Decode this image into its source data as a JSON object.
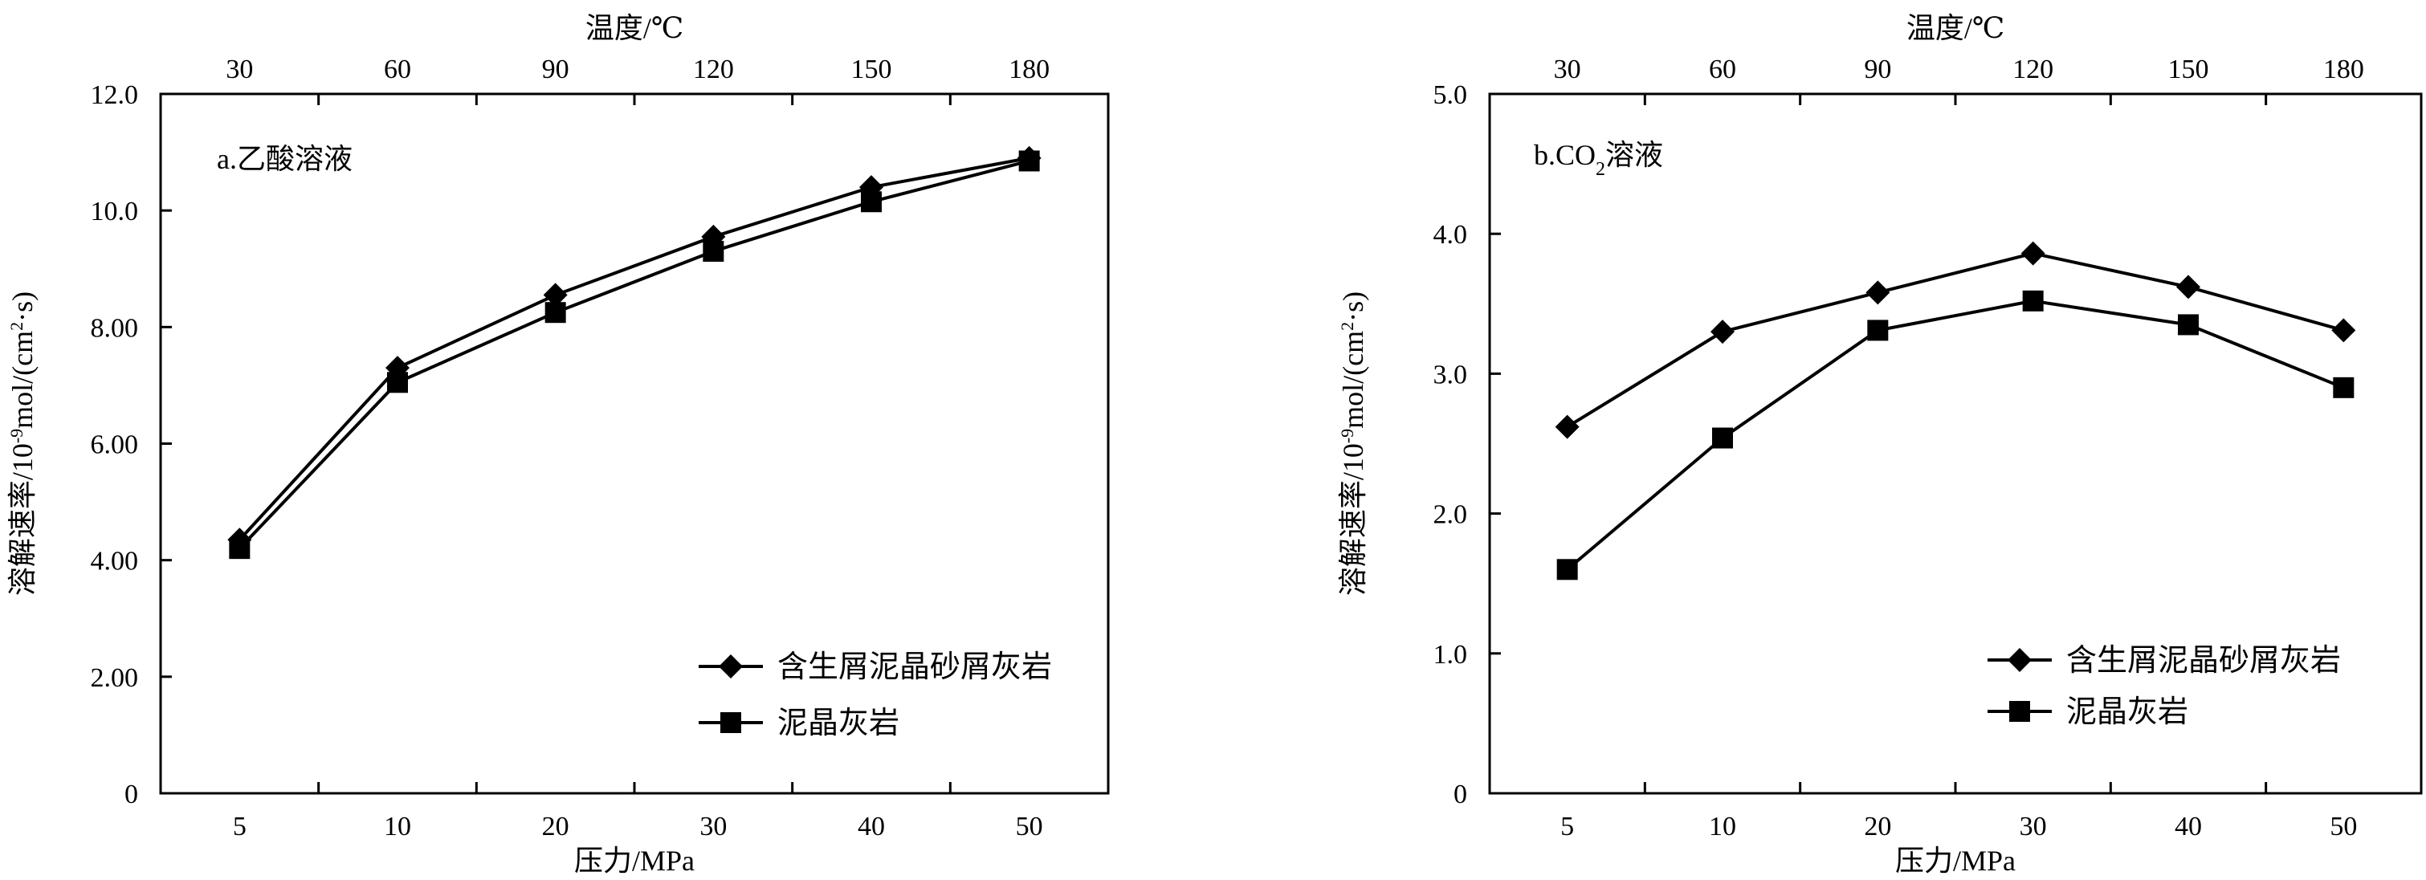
{
  "chart_data": [
    {
      "type": "line",
      "panel_label": "a.乙酸溶液",
      "xlabel": "压力/MPa",
      "x_ticks": [
        "5",
        "10",
        "20",
        "30",
        "40",
        "50"
      ],
      "x2label": "温度/℃",
      "x2_ticks": [
        "30",
        "60",
        "90",
        "120",
        "150",
        "180"
      ],
      "ylabel": "溶解速率/10⁻⁹mol/(cm²·s)",
      "ylabel_parts": {
        "pre": "溶解速率/10",
        "exp1": "-9",
        "mid": "mol/(cm",
        "exp2": "2",
        "post": "·s)"
      },
      "ylim": [
        0,
        12
      ],
      "y_ticks": [
        "0",
        "2.00",
        "4.00",
        "6.00",
        "8.00",
        "10.0",
        "12.0"
      ],
      "y_tick_values": [
        0,
        2,
        4,
        6,
        8,
        10,
        12
      ],
      "grid": false,
      "legend_position": "bottom-right",
      "series": [
        {
          "name": "含生屑泥晶砂屑灰岩",
          "marker": "diamond",
          "values": [
            4.35,
            7.3,
            8.55,
            9.55,
            10.4,
            10.9
          ]
        },
        {
          "name": "泥晶灰岩",
          "marker": "square",
          "values": [
            4.2,
            7.05,
            8.25,
            9.3,
            10.15,
            10.85
          ]
        }
      ]
    },
    {
      "type": "line",
      "panel_label": "b.CO₂溶液",
      "panel_label_parts": {
        "pre": "b.CO",
        "sub": "2",
        "post": "溶液"
      },
      "xlabel": "压力/MPa",
      "x_ticks": [
        "5",
        "10",
        "20",
        "30",
        "40",
        "50"
      ],
      "x2label": "温度/℃",
      "x2_ticks": [
        "30",
        "60",
        "90",
        "120",
        "150",
        "180"
      ],
      "ylabel": "溶解速率/10⁻⁹mol/(cm²·s)",
      "ylabel_parts": {
        "pre": "溶解速率/10",
        "exp1": "-9",
        "mid": "mol/(cm",
        "exp2": "2",
        "post": "·s)"
      },
      "ylim": [
        0,
        5
      ],
      "y_ticks": [
        "0",
        "1.0",
        "2.0",
        "3.0",
        "4.0",
        "5.0"
      ],
      "y_tick_values": [
        0,
        1,
        2,
        3,
        4,
        5
      ],
      "grid": false,
      "legend_position": "bottom-right",
      "series": [
        {
          "name": "含生屑泥晶砂屑灰岩",
          "marker": "diamond",
          "values": [
            2.62,
            3.3,
            3.58,
            3.86,
            3.62,
            3.31
          ]
        },
        {
          "name": "泥晶灰岩",
          "marker": "square",
          "values": [
            1.6,
            2.54,
            3.31,
            3.52,
            3.35,
            2.9
          ]
        }
      ]
    }
  ]
}
